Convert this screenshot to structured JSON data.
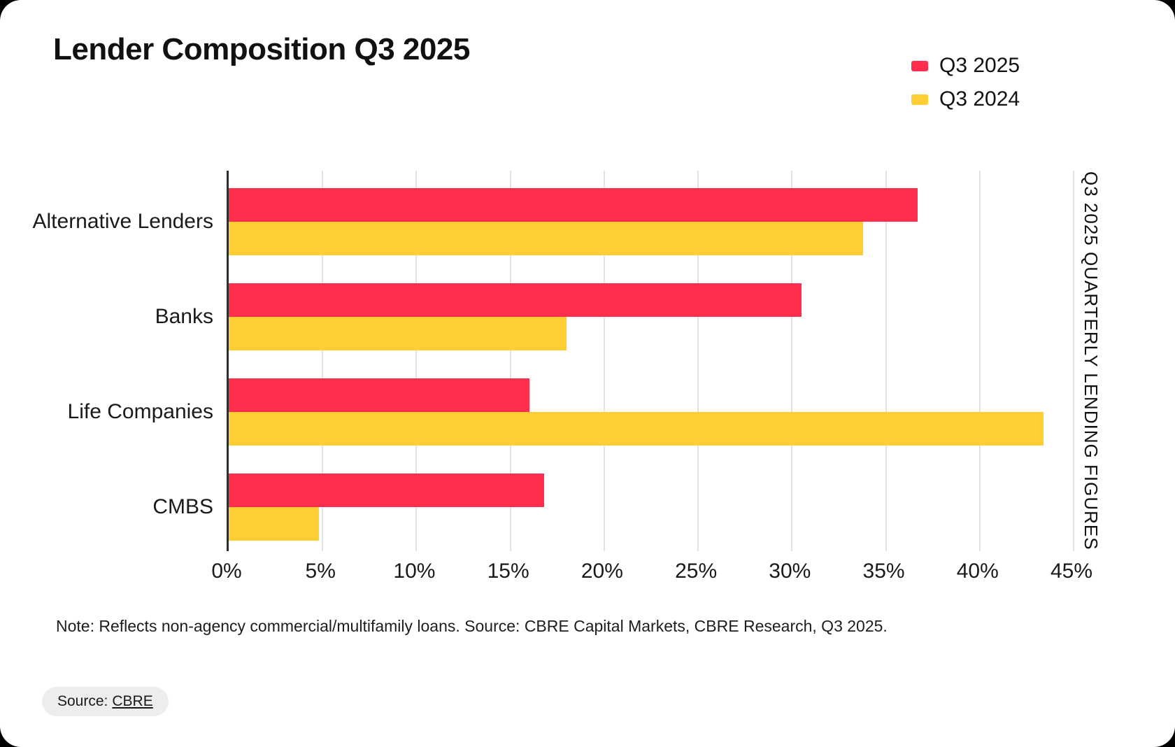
{
  "page": {
    "background": "#000000",
    "card_background": "#ffffff"
  },
  "header": {
    "title": "Lender Composition Q3 2025"
  },
  "legend": {
    "items": [
      {
        "label": "Q3 2025",
        "color": "#ff2e4d"
      },
      {
        "label": "Q3 2024",
        "color": "#ffce33"
      }
    ]
  },
  "chart_data": {
    "type": "bar",
    "orientation": "horizontal",
    "title": "Lender Composition Q3 2025",
    "categories": [
      "Alternative Lenders",
      "Banks",
      "Life Companies",
      "CMBS"
    ],
    "series": [
      {
        "name": "Q3 2025",
        "color": "#ff2e4d",
        "values": [
          36.7,
          30.5,
          16.0,
          16.8
        ]
      },
      {
        "name": "Q3 2024",
        "color": "#ffce33",
        "values": [
          33.8,
          18.0,
          43.4,
          4.8
        ]
      }
    ],
    "xlabel": "",
    "ylabel": "",
    "xlim": [
      0,
      45
    ],
    "x_tick_step": 5,
    "x_ticks": [
      "0%",
      "5%",
      "10%",
      "15%",
      "20%",
      "25%",
      "30%",
      "35%",
      "40%",
      "45%"
    ],
    "grid": true,
    "legend_position": "top-right",
    "right_axis_label": "Q3 2025 QUARTERLY LENDING FIGURES",
    "axis_color": "#2e2e2e",
    "grid_color": "#e2e2e2"
  },
  "footer": {
    "note": "Note: Reflects non-agency commercial/multifamily loans. Source: CBRE Capital Markets, CBRE Research, Q3 2025.",
    "source_prefix": "Source:",
    "source_link": "CBRE"
  }
}
